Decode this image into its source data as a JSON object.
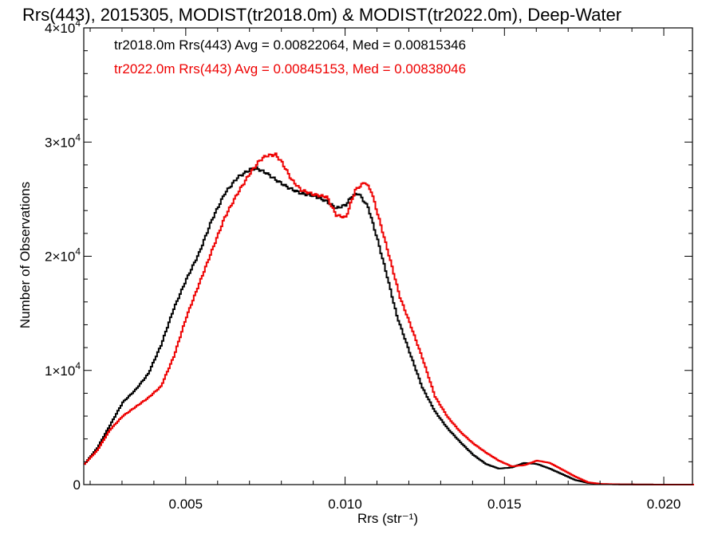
{
  "chart_data": {
    "type": "line",
    "title": "Rrs(443), 2015305, MODIST(tr2018.0m) & MODIST(tr2022.0m), Deep-Water",
    "xlabel": "Rrs (str⁻¹)",
    "ylabel": "Number of Observations",
    "xlim": [
      0.0018,
      0.0209
    ],
    "ylim": [
      0,
      40000
    ],
    "x_ticks": [
      {
        "value": 0.005,
        "label": "0.005"
      },
      {
        "value": 0.01,
        "label": "0.010"
      },
      {
        "value": 0.015,
        "label": "0.015"
      },
      {
        "value": 0.02,
        "label": "0.020"
      }
    ],
    "y_ticks": [
      {
        "value": 0,
        "label": "0"
      },
      {
        "value": 10000,
        "mant": "1×10",
        "exp": "4"
      },
      {
        "value": 20000,
        "mant": "2×10",
        "exp": "4"
      },
      {
        "value": 30000,
        "mant": "3×10",
        "exp": "4"
      },
      {
        "value": 40000,
        "mant": "4×10",
        "exp": "4"
      }
    ],
    "legend": [
      {
        "text": "tr2018.0m Rrs(443) Avg = 0.00822064, Med = 0.00815346",
        "color": "#000000"
      },
      {
        "text": "tr2022.0m Rrs(443) Avg = 0.00845153, Med = 0.00838046",
        "color": "#ee0000"
      }
    ],
    "legend_position": "top-left",
    "grid": false,
    "series": [
      {
        "color": "#000000",
        "points": [
          [
            0.0018,
            1800
          ],
          [
            0.0022,
            3200
          ],
          [
            0.0026,
            5200
          ],
          [
            0.003,
            7200
          ],
          [
            0.0034,
            8300
          ],
          [
            0.0038,
            9700
          ],
          [
            0.0042,
            12200
          ],
          [
            0.0046,
            15400
          ],
          [
            0.005,
            18000
          ],
          [
            0.0054,
            20300
          ],
          [
            0.0058,
            23200
          ],
          [
            0.0062,
            25500
          ],
          [
            0.0066,
            26900
          ],
          [
            0.007,
            27600
          ],
          [
            0.0072,
            27700
          ],
          [
            0.0075,
            27300
          ],
          [
            0.0078,
            26700
          ],
          [
            0.0082,
            26000
          ],
          [
            0.0086,
            25500
          ],
          [
            0.009,
            25300
          ],
          [
            0.0094,
            24800
          ],
          [
            0.0097,
            24200
          ],
          [
            0.01,
            24500
          ],
          [
            0.0102,
            25300
          ],
          [
            0.0104,
            25500
          ],
          [
            0.0107,
            24300
          ],
          [
            0.011,
            21400
          ],
          [
            0.0113,
            18200
          ],
          [
            0.0116,
            14800
          ],
          [
            0.012,
            11600
          ],
          [
            0.0124,
            8500
          ],
          [
            0.0128,
            6400
          ],
          [
            0.0132,
            4900
          ],
          [
            0.0136,
            3700
          ],
          [
            0.014,
            2600
          ],
          [
            0.0144,
            1800
          ],
          [
            0.0148,
            1400
          ],
          [
            0.0152,
            1500
          ],
          [
            0.0156,
            1900
          ],
          [
            0.016,
            1800
          ],
          [
            0.0164,
            1400
          ],
          [
            0.0168,
            900
          ],
          [
            0.0172,
            400
          ],
          [
            0.0176,
            150
          ],
          [
            0.018,
            50
          ],
          [
            0.0186,
            20
          ],
          [
            0.0195,
            5
          ],
          [
            0.0209,
            0
          ]
        ]
      },
      {
        "color": "#ee0000",
        "points": [
          [
            0.0018,
            1800
          ],
          [
            0.0022,
            3000
          ],
          [
            0.0026,
            4800
          ],
          [
            0.003,
            6000
          ],
          [
            0.0034,
            6800
          ],
          [
            0.0038,
            7600
          ],
          [
            0.0042,
            8600
          ],
          [
            0.0046,
            11200
          ],
          [
            0.005,
            14700
          ],
          [
            0.0054,
            17600
          ],
          [
            0.0058,
            20500
          ],
          [
            0.0062,
            23400
          ],
          [
            0.0066,
            25500
          ],
          [
            0.007,
            27300
          ],
          [
            0.0073,
            28400
          ],
          [
            0.0075,
            28800
          ],
          [
            0.0078,
            28900
          ],
          [
            0.008,
            28200
          ],
          [
            0.0083,
            26700
          ],
          [
            0.0086,
            25800
          ],
          [
            0.009,
            25400
          ],
          [
            0.0094,
            25200
          ],
          [
            0.0097,
            23600
          ],
          [
            0.01,
            23400
          ],
          [
            0.0103,
            25800
          ],
          [
            0.0106,
            26500
          ],
          [
            0.0108,
            25700
          ],
          [
            0.0111,
            22700
          ],
          [
            0.0114,
            19600
          ],
          [
            0.0117,
            16400
          ],
          [
            0.012,
            14200
          ],
          [
            0.0124,
            11100
          ],
          [
            0.0128,
            7700
          ],
          [
            0.0132,
            5900
          ],
          [
            0.0136,
            4600
          ],
          [
            0.014,
            3600
          ],
          [
            0.0144,
            2800
          ],
          [
            0.0148,
            2100
          ],
          [
            0.0152,
            1600
          ],
          [
            0.0156,
            1700
          ],
          [
            0.016,
            2100
          ],
          [
            0.0164,
            1900
          ],
          [
            0.0168,
            1300
          ],
          [
            0.0172,
            700
          ],
          [
            0.0176,
            200
          ],
          [
            0.018,
            60
          ],
          [
            0.0186,
            20
          ],
          [
            0.0195,
            5
          ],
          [
            0.0209,
            0
          ]
        ]
      }
    ]
  }
}
